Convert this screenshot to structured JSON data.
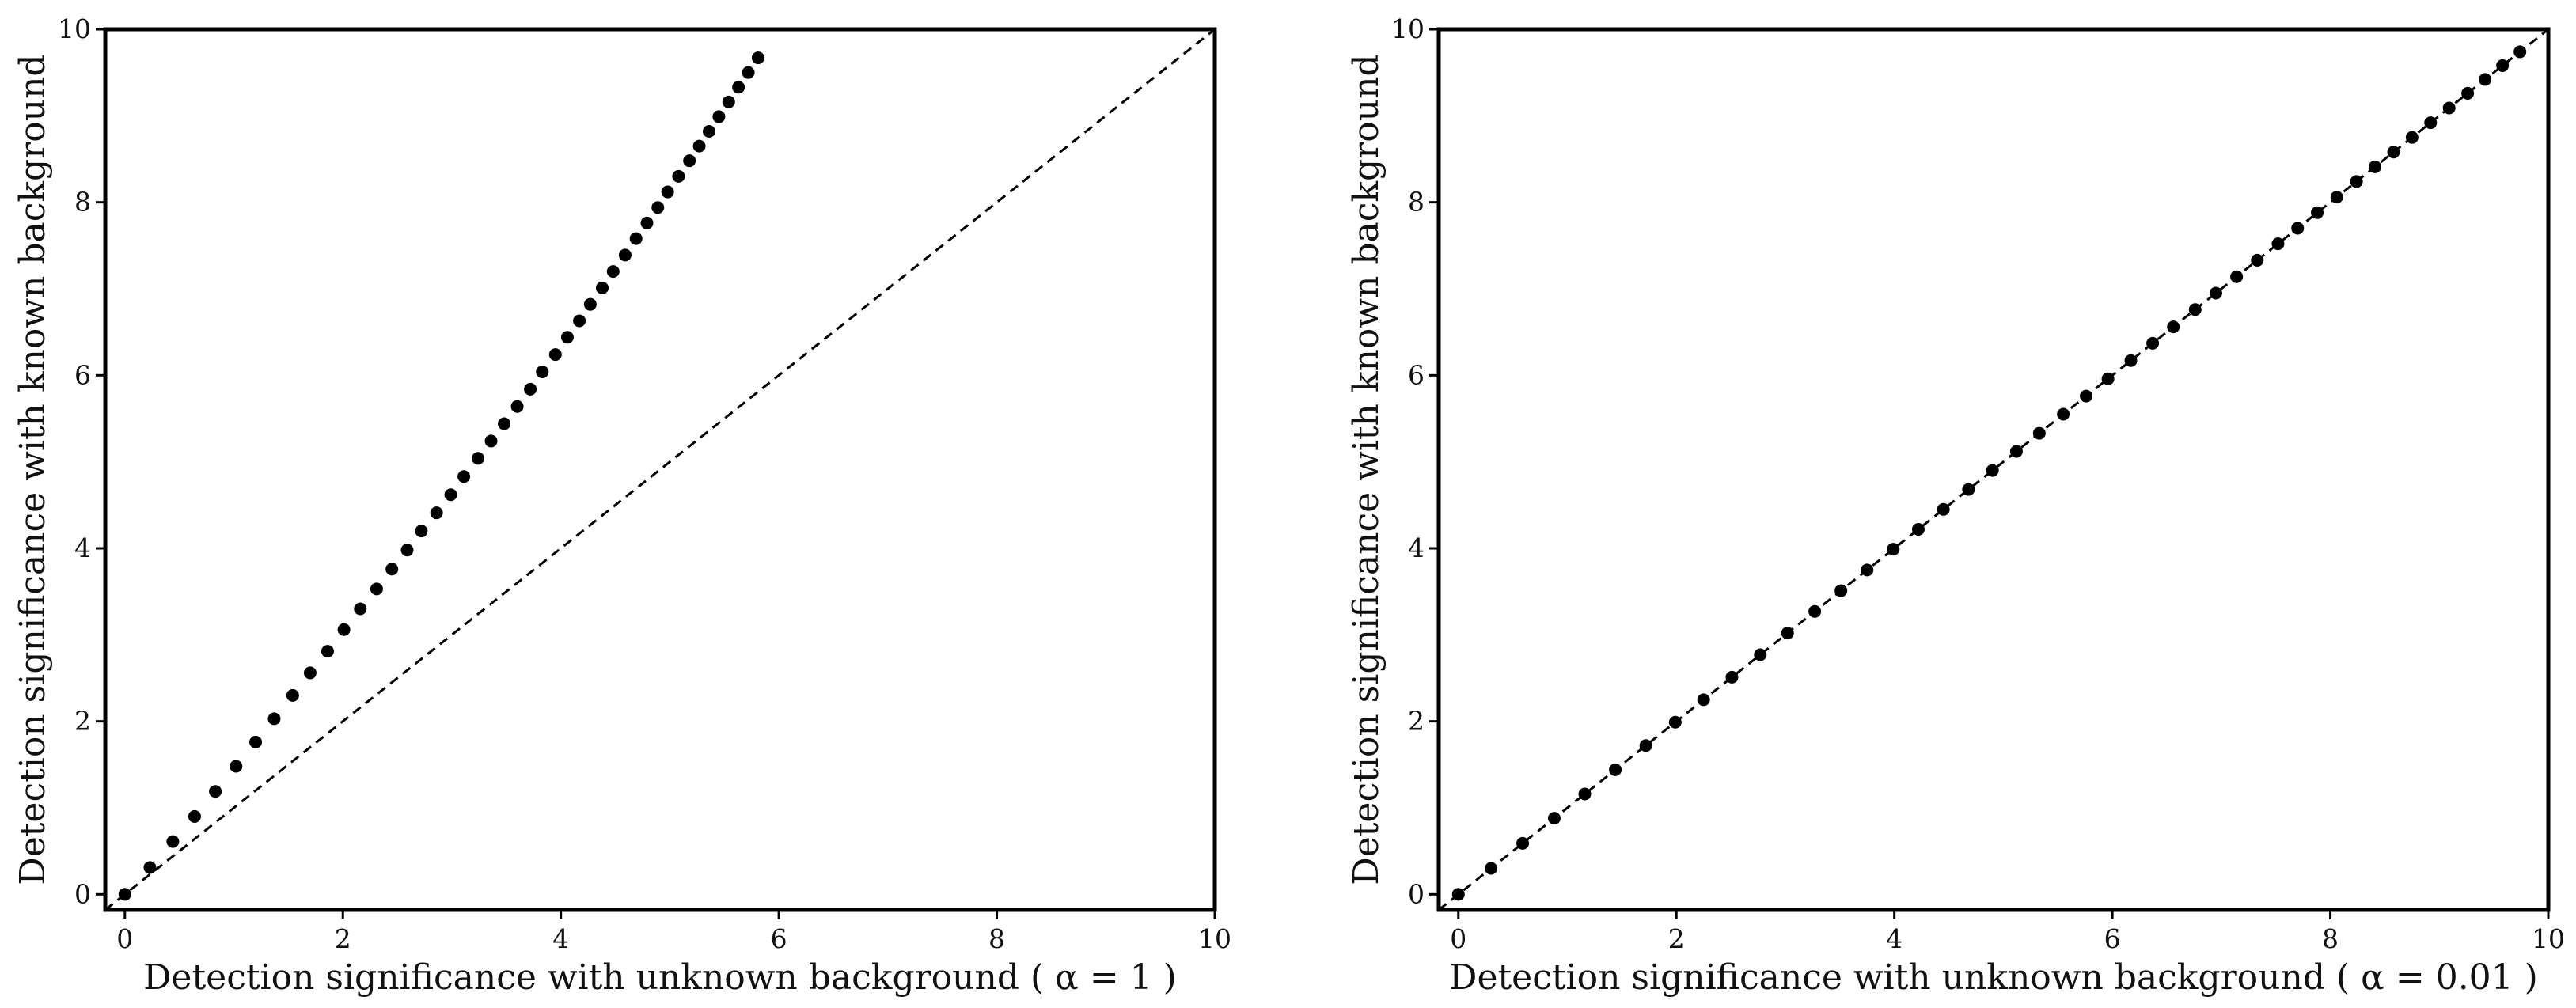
{
  "chart_data": [
    {
      "type": "scatter",
      "xlabel": "Detection significance with unknown background ( α = 1 )",
      "ylabel": "Detection significance with known background",
      "xlim": [
        0,
        10
      ],
      "ylim": [
        0,
        10
      ],
      "xticks": [
        "0",
        "2",
        "4",
        "6",
        "8",
        "10"
      ],
      "yticks": [
        "0",
        "2",
        "4",
        "6",
        "8",
        "10"
      ],
      "reference_line": "y = x (dashed)",
      "grid": false,
      "series": [
        {
          "x": [
            0.0,
            0.23,
            0.44,
            0.64,
            0.83,
            1.02,
            1.2,
            1.37,
            1.54,
            1.7,
            1.86,
            2.01,
            2.16,
            2.31,
            2.45,
            2.59,
            2.72,
            2.86,
            2.99,
            3.11,
            3.24,
            3.36,
            3.48,
            3.6,
            3.72,
            3.83,
            3.95,
            4.06,
            4.17,
            4.27,
            4.38,
            4.48,
            4.59,
            4.69,
            4.79,
            4.89,
            4.98,
            5.08,
            5.18,
            5.27,
            5.36,
            5.45,
            5.54,
            5.63,
            5.72,
            5.81
          ],
          "y": [
            0.0,
            0.31,
            0.61,
            0.9,
            1.19,
            1.48,
            1.76,
            2.03,
            2.3,
            2.56,
            2.81,
            3.06,
            3.3,
            3.53,
            3.76,
            3.98,
            4.2,
            4.41,
            4.62,
            4.83,
            5.04,
            5.24,
            5.44,
            5.64,
            5.84,
            6.04,
            6.24,
            6.44,
            6.63,
            6.82,
            7.01,
            7.2,
            7.39,
            7.58,
            7.76,
            7.94,
            8.12,
            8.3,
            8.48,
            8.65,
            8.82,
            8.99,
            9.16,
            9.33,
            9.5,
            9.67
          ]
        }
      ]
    },
    {
      "type": "scatter",
      "xlabel": "Detection significance with unknown background ( α = 0.01 )",
      "ylabel": "Detection significance with known background",
      "xlim": [
        0,
        10
      ],
      "ylim": [
        0,
        10
      ],
      "xticks": [
        "0",
        "2",
        "4",
        "6",
        "8",
        "10"
      ],
      "yticks": [
        "0",
        "2",
        "4",
        "6",
        "8",
        "10"
      ],
      "reference_line": "y = x (dashed)",
      "grid": false,
      "series": [
        {
          "x": [
            0.0,
            0.3,
            0.59,
            0.88,
            1.16,
            1.44,
            1.72,
            1.99,
            2.25,
            2.51,
            2.77,
            3.02,
            3.27,
            3.51,
            3.75,
            3.99,
            4.22,
            4.45,
            4.68,
            4.9,
            5.12,
            5.33,
            5.55,
            5.76,
            5.96,
            6.17,
            6.37,
            6.56,
            6.76,
            6.95,
            7.14,
            7.33,
            7.52,
            7.7,
            7.88,
            8.06,
            8.24,
            8.41,
            8.58,
            8.75,
            8.92,
            9.09,
            9.26,
            9.42,
            9.58,
            9.74
          ],
          "y": [
            0.0,
            0.3,
            0.59,
            0.88,
            1.16,
            1.44,
            1.72,
            1.99,
            2.25,
            2.51,
            2.77,
            3.02,
            3.27,
            3.51,
            3.75,
            3.99,
            4.22,
            4.45,
            4.68,
            4.9,
            5.12,
            5.33,
            5.55,
            5.76,
            5.96,
            6.17,
            6.37,
            6.56,
            6.76,
            6.95,
            7.14,
            7.33,
            7.52,
            7.7,
            7.88,
            8.06,
            8.24,
            8.41,
            8.58,
            8.75,
            8.92,
            9.09,
            9.26,
            9.42,
            9.58,
            9.74
          ]
        }
      ]
    }
  ]
}
